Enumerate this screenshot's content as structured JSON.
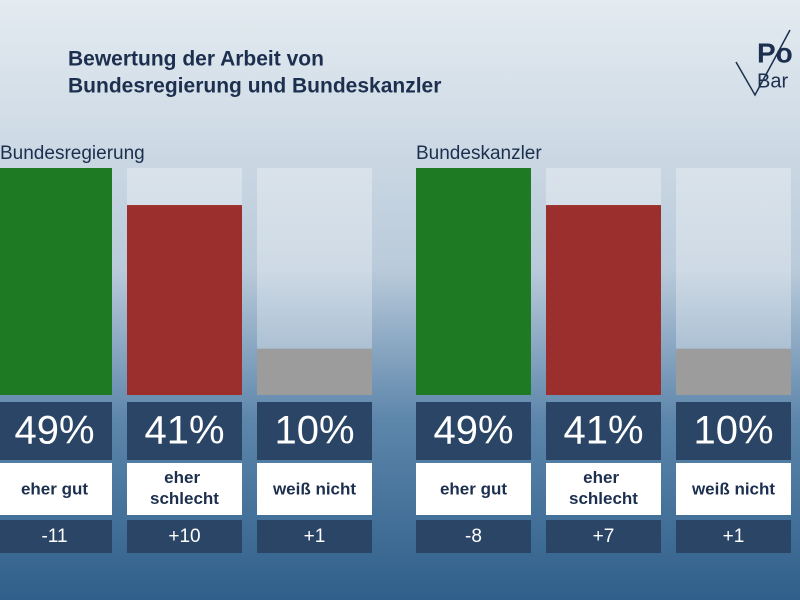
{
  "title_lines": [
    "Bewertung der Arbeit von",
    "Bundesregierung und Bundeskanzler"
  ],
  "logo": [
    "Po",
    "Bar"
  ],
  "chart_data": [
    {
      "type": "bar",
      "title": "Bundesregierung",
      "categories": [
        "eher gut",
        "eher schlecht",
        "weiß nicht"
      ],
      "values": [
        49,
        41,
        10
      ],
      "value_labels": [
        "49%",
        "41%",
        "10%"
      ],
      "colors": [
        "#1f7a24",
        "#9a2f2d",
        "#9c9c9c"
      ],
      "changes": [
        -11,
        10,
        1
      ],
      "change_labels": [
        "-11",
        "+10",
        "+1"
      ],
      "ylim": [
        0,
        49
      ]
    },
    {
      "type": "bar",
      "title": "Bundeskanzler",
      "categories": [
        "eher gut",
        "eher schlecht",
        "weiß nicht"
      ],
      "values": [
        49,
        41,
        10
      ],
      "value_labels": [
        "49%",
        "41%",
        "10%"
      ],
      "colors": [
        "#1f7a24",
        "#9a2f2d",
        "#9c9c9c"
      ],
      "changes": [
        -8,
        7,
        1
      ],
      "change_labels": [
        "-8",
        "+7",
        "+1"
      ],
      "ylim": [
        0,
        49
      ]
    }
  ]
}
